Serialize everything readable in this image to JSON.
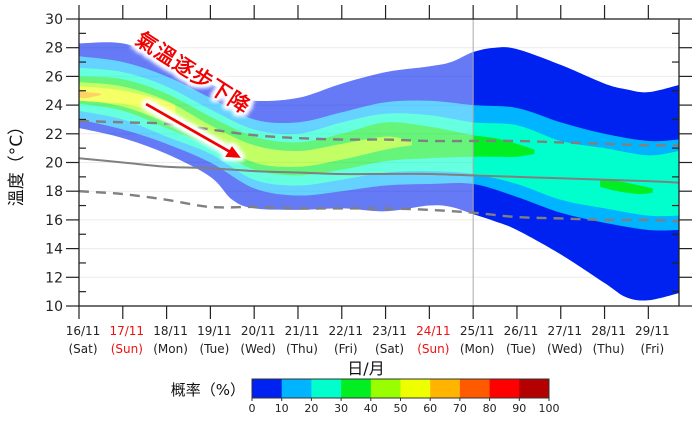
{
  "chart_data": {
    "type": "area",
    "ylabel": "溫度（°C）",
    "xlabel": "日/月",
    "annotation": "氣溫逐步下降",
    "ylim": [
      10,
      30
    ],
    "xlim": [
      16,
      29.7
    ],
    "yticks": [
      10,
      12,
      14,
      16,
      18,
      20,
      22,
      24,
      26,
      28,
      30
    ],
    "grid": true,
    "divider_day": 25,
    "xticks": [
      {
        "day": 16,
        "date": "16/11",
        "weekday": "(Sat)",
        "holiday": false
      },
      {
        "day": 17,
        "date": "17/11",
        "weekday": "(Sun)",
        "holiday": true
      },
      {
        "day": 18,
        "date": "18/11",
        "weekday": "(Mon)",
        "holiday": false
      },
      {
        "day": 19,
        "date": "19/11",
        "weekday": "(Tue)",
        "holiday": false
      },
      {
        "day": 20,
        "date": "20/11",
        "weekday": "(Wed)",
        "holiday": false
      },
      {
        "day": 21,
        "date": "21/11",
        "weekday": "(Thu)",
        "holiday": false
      },
      {
        "day": 22,
        "date": "22/11",
        "weekday": "(Fri)",
        "holiday": false
      },
      {
        "day": 23,
        "date": "23/11",
        "weekday": "(Sat)",
        "holiday": false
      },
      {
        "day": 24,
        "date": "24/11",
        "weekday": "(Sun)",
        "holiday": true
      },
      {
        "day": 25,
        "date": "25/11",
        "weekday": "(Mon)",
        "holiday": false
      },
      {
        "day": 26,
        "date": "26/11",
        "weekday": "(Tue)",
        "holiday": false
      },
      {
        "day": 27,
        "date": "27/11",
        "weekday": "(Wed)",
        "holiday": false
      },
      {
        "day": 28,
        "date": "28/11",
        "weekday": "(Thu)",
        "holiday": false
      },
      {
        "day": 29,
        "date": "29/11",
        "weekday": "(Fri)",
        "holiday": false
      }
    ],
    "colorbar": {
      "label": "概率（%）",
      "ticks": [
        "0",
        "10",
        "20",
        "30",
        "40",
        "50",
        "60",
        "70",
        "80",
        "90",
        "100"
      ],
      "colors": [
        "#0022f0",
        "#00b4ff",
        "#00ffcc",
        "#00ee22",
        "#99ff00",
        "#eeff00",
        "#ffb400",
        "#ff5a00",
        "#ff0000",
        "#b40000"
      ]
    },
    "probability_bands": [
      {
        "level": 0,
        "x": [
          16,
          17,
          18,
          19,
          19.5,
          20,
          21,
          22,
          23,
          24,
          24.5,
          25,
          25.5,
          26,
          27,
          28,
          28.5,
          29,
          29.7
        ],
        "upper": [
          28.3,
          28.3,
          27.2,
          25.5,
          24.8,
          24.3,
          24.5,
          25.5,
          26.3,
          26.7,
          27.0,
          27.7,
          28.0,
          27.9,
          26.8,
          25.5,
          25.1,
          24.9,
          25.4
        ],
        "lower": [
          22.4,
          21.7,
          20.6,
          19.0,
          17.4,
          16.8,
          16.7,
          16.8,
          16.6,
          17.0,
          16.9,
          16.4,
          15.9,
          15.3,
          13.6,
          11.6,
          10.6,
          10.4,
          10.9
        ]
      },
      {
        "level": 10,
        "x": [
          16,
          17,
          18,
          19,
          20,
          21,
          22,
          23,
          24,
          25,
          26,
          27,
          28,
          29,
          29.7
        ],
        "upper": [
          27.4,
          27.0,
          26.0,
          24.5,
          23.0,
          22.8,
          23.5,
          24.2,
          24.3,
          24.0,
          23.8,
          22.8,
          22.0,
          21.5,
          21.6
        ],
        "lower": [
          23.0,
          22.3,
          21.3,
          20.0,
          18.2,
          17.7,
          18.0,
          18.4,
          18.5,
          18.5,
          17.6,
          16.5,
          15.8,
          15.3,
          15.3
        ]
      },
      {
        "level": 20,
        "x": [
          16,
          17,
          18,
          19,
          20,
          21,
          22,
          23,
          24,
          25,
          26,
          27,
          28,
          29,
          29.7
        ],
        "upper": [
          26.6,
          26.3,
          25.3,
          23.7,
          22.3,
          22.0,
          22.8,
          23.4,
          23.3,
          22.8,
          22.6,
          21.5,
          21.0,
          20.5,
          20.8
        ],
        "lower": [
          23.6,
          23.0,
          21.8,
          20.6,
          18.8,
          18.4,
          18.8,
          19.3,
          19.4,
          19.2,
          18.5,
          17.4,
          16.8,
          16.3,
          16.3
        ]
      },
      {
        "level": 30,
        "x": [
          16,
          17,
          18,
          19,
          20,
          21,
          22,
          23,
          24,
          25,
          25.5,
          26,
          26.4
        ],
        "upper": [
          26.0,
          25.8,
          24.8,
          23.2,
          21.8,
          21.4,
          22.0,
          22.8,
          22.5,
          21.9,
          21.7,
          21.3,
          20.9
        ],
        "lower": [
          24.1,
          23.6,
          22.4,
          21.1,
          19.5,
          19.1,
          19.5,
          20.1,
          20.3,
          20.4,
          20.4,
          20.4,
          20.6
        ]
      },
      {
        "level": 30,
        "x": [
          27.9,
          28.3,
          28.8,
          29.1
        ],
        "upper": [
          18.8,
          18.7,
          18.4,
          18.2
        ],
        "lower": [
          18.3,
          18.0,
          17.8,
          17.9
        ]
      },
      {
        "level": 40,
        "x": [
          16,
          17,
          18,
          19,
          20,
          21,
          22,
          23,
          23.6
        ],
        "upper": [
          25.6,
          25.3,
          24.3,
          22.6,
          21.2,
          20.8,
          21.3,
          21.8,
          21.5
        ],
        "lower": [
          24.4,
          23.9,
          22.8,
          21.6,
          20.0,
          19.7,
          20.2,
          20.9,
          21.2
        ]
      },
      {
        "level": 50,
        "x": [
          16,
          16.5,
          17,
          17.6,
          18.2
        ],
        "upper": [
          25.3,
          25.2,
          25.0,
          24.6,
          24.0
        ],
        "lower": [
          24.3,
          24.2,
          24.1,
          23.7,
          23.2
        ]
      },
      {
        "level": 60,
        "x": [
          16,
          16.2,
          16.5
        ],
        "upper": [
          25.0,
          24.9,
          24.8
        ],
        "lower": [
          24.5,
          24.5,
          24.7
        ]
      }
    ],
    "series": [
      {
        "style": "solid",
        "x": [
          16,
          17,
          18,
          19,
          20,
          21,
          22,
          23,
          24,
          25,
          26,
          27,
          28,
          29,
          29.7
        ],
        "values": [
          20.3,
          20.0,
          19.7,
          19.6,
          19.4,
          19.3,
          19.2,
          19.2,
          19.2,
          19.1,
          19.0,
          18.9,
          18.8,
          18.7,
          18.6
        ]
      },
      {
        "style": "dashed",
        "x": [
          16,
          17,
          18,
          19,
          20,
          21,
          22,
          23,
          24,
          25,
          26,
          27,
          28,
          29,
          29.7
        ],
        "values": [
          22.9,
          22.8,
          22.7,
          22.3,
          21.9,
          21.7,
          21.6,
          21.6,
          21.5,
          21.5,
          21.5,
          21.4,
          21.3,
          21.2,
          21.2
        ]
      },
      {
        "style": "dashed",
        "x": [
          16,
          17,
          18,
          19,
          20,
          21,
          22,
          23,
          24,
          25,
          26,
          27,
          28,
          29,
          29.7
        ],
        "values": [
          18.0,
          17.8,
          17.4,
          16.9,
          16.9,
          16.8,
          16.8,
          16.8,
          16.7,
          16.5,
          16.2,
          16.1,
          16.0,
          16.0,
          15.9
        ]
      }
    ]
  }
}
